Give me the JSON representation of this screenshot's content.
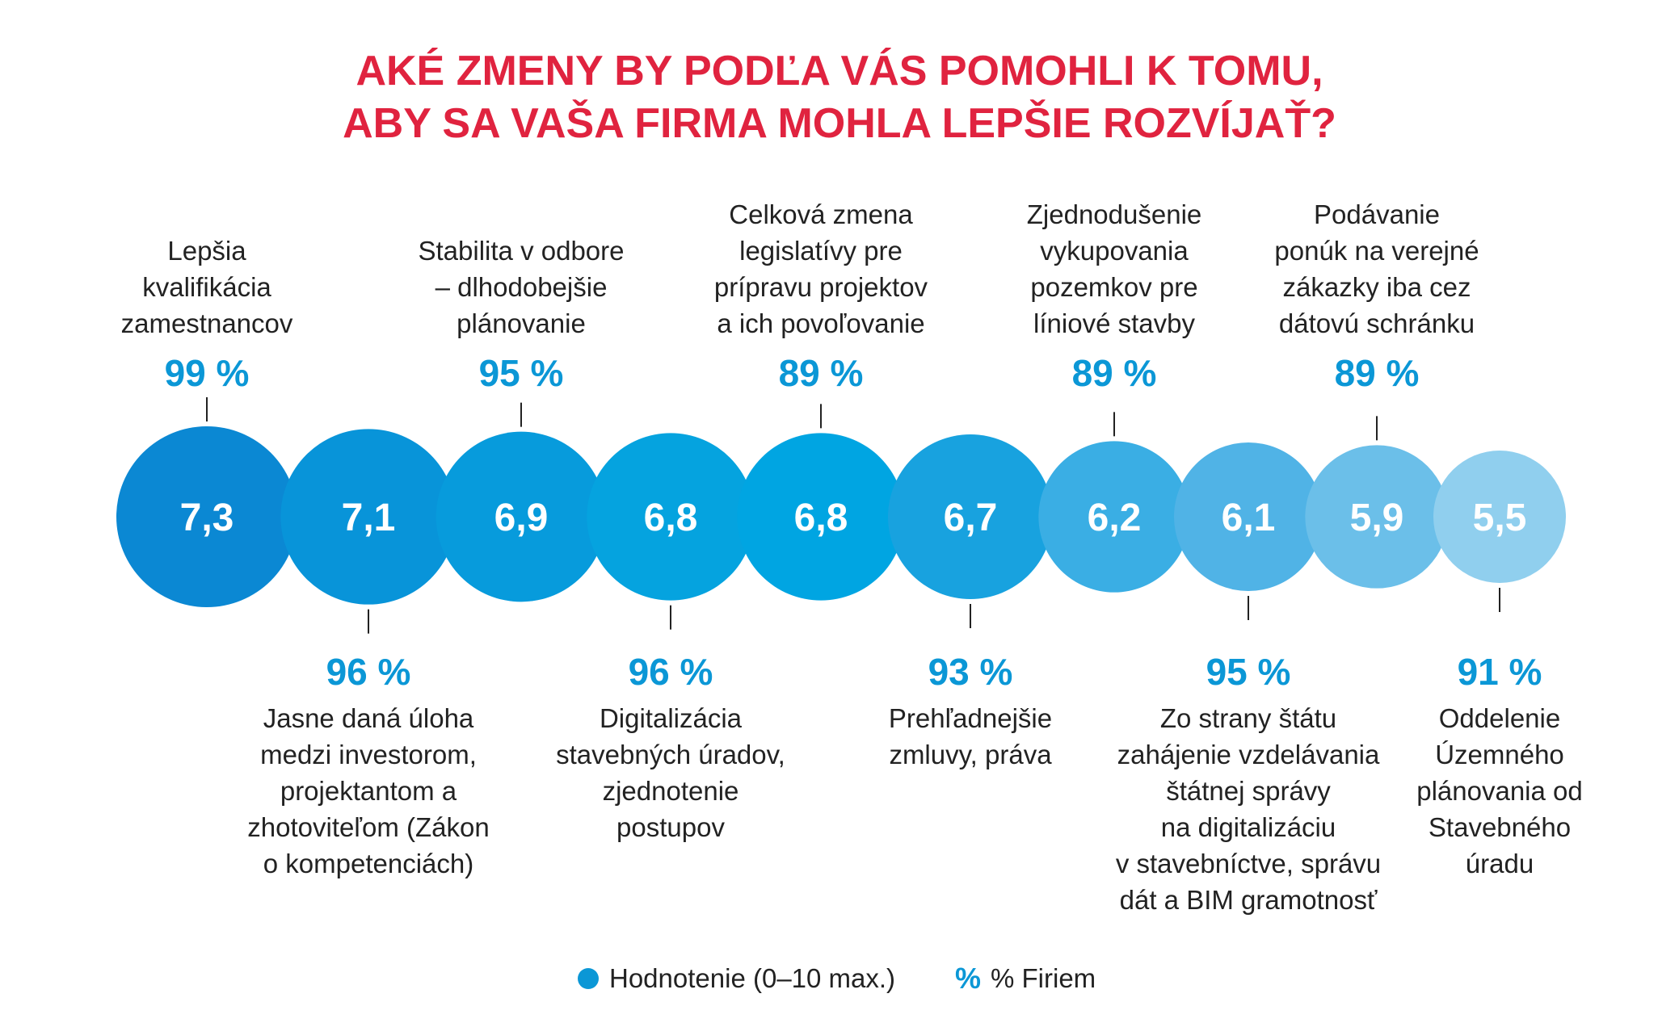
{
  "chart_data": {
    "type": "bubble",
    "title_lines": [
      "AKÉ ZMENY BY  PODĽA VÁS  POMOHLI K TOMU,",
      "ABY SA VAŠA FIRMA MOHLA LEPŠIE ROZVÍJAŤ?"
    ],
    "items": [
      {
        "score": "7,3",
        "percent": "99 %",
        "label_position": "top",
        "label_lines": [
          "Lepšia",
          "kvalifikácia",
          "zamestnancov"
        ],
        "color": "#0b88d3"
      },
      {
        "score": "7,1",
        "percent": "96 %",
        "label_position": "bottom",
        "label_lines": [
          "Jasne daná úloha",
          "medzi investorom,",
          "projektantom a",
          "zhotoviteľom (Zákon",
          "o kompetenciách)"
        ],
        "color": "#0894d9"
      },
      {
        "score": "6,9",
        "percent": "95 %",
        "label_position": "top",
        "label_lines": [
          "Stabilita v odbore",
          "– dlhodobejšie",
          "plánovanie"
        ],
        "color": "#079bdc"
      },
      {
        "score": "6,8",
        "percent": "96 %",
        "label_position": "bottom",
        "label_lines": [
          "Digitalizácia",
          "stavebných úradov,",
          "zjednotenie",
          "postupov"
        ],
        "color": "#05a3df"
      },
      {
        "score": "6,8",
        "percent": "89 %",
        "label_position": "top",
        "label_lines": [
          "Celková zmena",
          "legislatívy pre",
          "prípravu projektov",
          "a ich povoľovanie"
        ],
        "color": "#00a5e2"
      },
      {
        "score": "6,7",
        "percent": "93 %",
        "label_position": "bottom",
        "label_lines": [
          "Prehľadnejšie",
          "zmluvy, práva"
        ],
        "color": "#18a2df"
      },
      {
        "score": "6,2",
        "percent": "89 %",
        "label_position": "top",
        "label_lines": [
          "Zjednodušenie",
          "vykupovania",
          "pozemkov pre",
          "líniové stavby"
        ],
        "color": "#3aaee4"
      },
      {
        "score": "6,1",
        "percent": "95 %",
        "label_position": "bottom",
        "label_lines": [
          "Zo strany štátu",
          "zahájenie vzdelávania",
          "štátnej správy",
          "na digitalizáciu",
          "v stavebníctve, správu",
          "dát a BIM gramotnosť"
        ],
        "color": "#50b3e6"
      },
      {
        "score": "5,9",
        "percent": "89 %",
        "label_position": "top",
        "label_lines": [
          "Podávanie",
          "ponúk na verejné",
          "zákazky iba cez",
          "dátovú schránku"
        ],
        "color": "#6bbfe9"
      },
      {
        "score": "5,5",
        "percent": "91 %",
        "label_position": "bottom",
        "label_lines": [
          "Oddelenie",
          "Územného",
          "plánovania od",
          "Stavebného",
          "úradu"
        ],
        "color": "#90cfee"
      }
    ],
    "legend": {
      "score_label": "Hodnotenie (0–10 max.)",
      "percent_symbol": "%",
      "percent_label": "% Firiem",
      "score_color": "#0b97d6"
    }
  }
}
